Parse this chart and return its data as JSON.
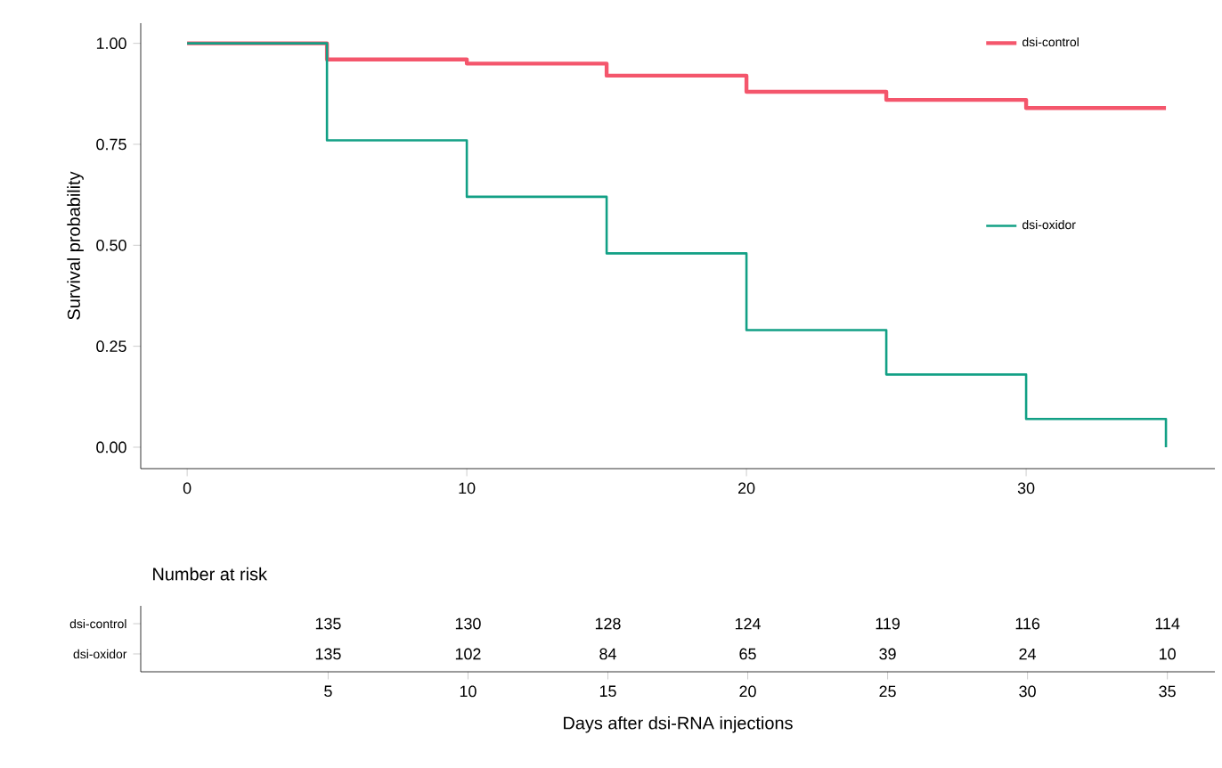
{
  "chart_data": [
    {
      "type": "step",
      "ylabel": "Survival probability",
      "x": [
        0,
        5,
        10,
        15,
        20,
        25,
        30,
        35
      ],
      "xlim": [
        -1.66,
        36.75
      ],
      "ylim": [
        -0.053,
        1.05
      ],
      "xticks": [
        0,
        10,
        20,
        30
      ],
      "yticks": [
        {
          "value": 0,
          "label": "0.00"
        },
        {
          "value": 0.25,
          "label": "0.25"
        },
        {
          "value": 0.5,
          "label": "0.50"
        },
        {
          "value": 0.75,
          "label": "0.75"
        },
        {
          "value": 1,
          "label": "1.00"
        }
      ],
      "legend": "right",
      "series": [
        {
          "name": "dsi-control",
          "color": "#f4566c",
          "values": [
            1,
            0.96,
            0.95,
            0.92,
            0.88,
            0.86,
            0.84,
            0.84
          ]
        },
        {
          "name": "dsi-oxidor",
          "color": "#12a085",
          "values": [
            1,
            0.76,
            0.62,
            0.48,
            0.29,
            0.18,
            0.07,
            0
          ]
        }
      ]
    },
    {
      "type": "heatmap",
      "title": "Number at risk",
      "xlabel": "Days after dsi-RNA injections",
      "categories": [
        "5",
        "10",
        "15",
        "20",
        "25",
        "30",
        "35"
      ],
      "y_categories": [
        "dsi-control",
        "dsi-oxidor"
      ],
      "data_labels": true,
      "cells": [
        [
          135,
          130,
          128,
          124,
          119,
          116,
          114
        ],
        [
          135,
          102,
          84,
          65,
          39,
          24,
          10
        ]
      ]
    }
  ]
}
